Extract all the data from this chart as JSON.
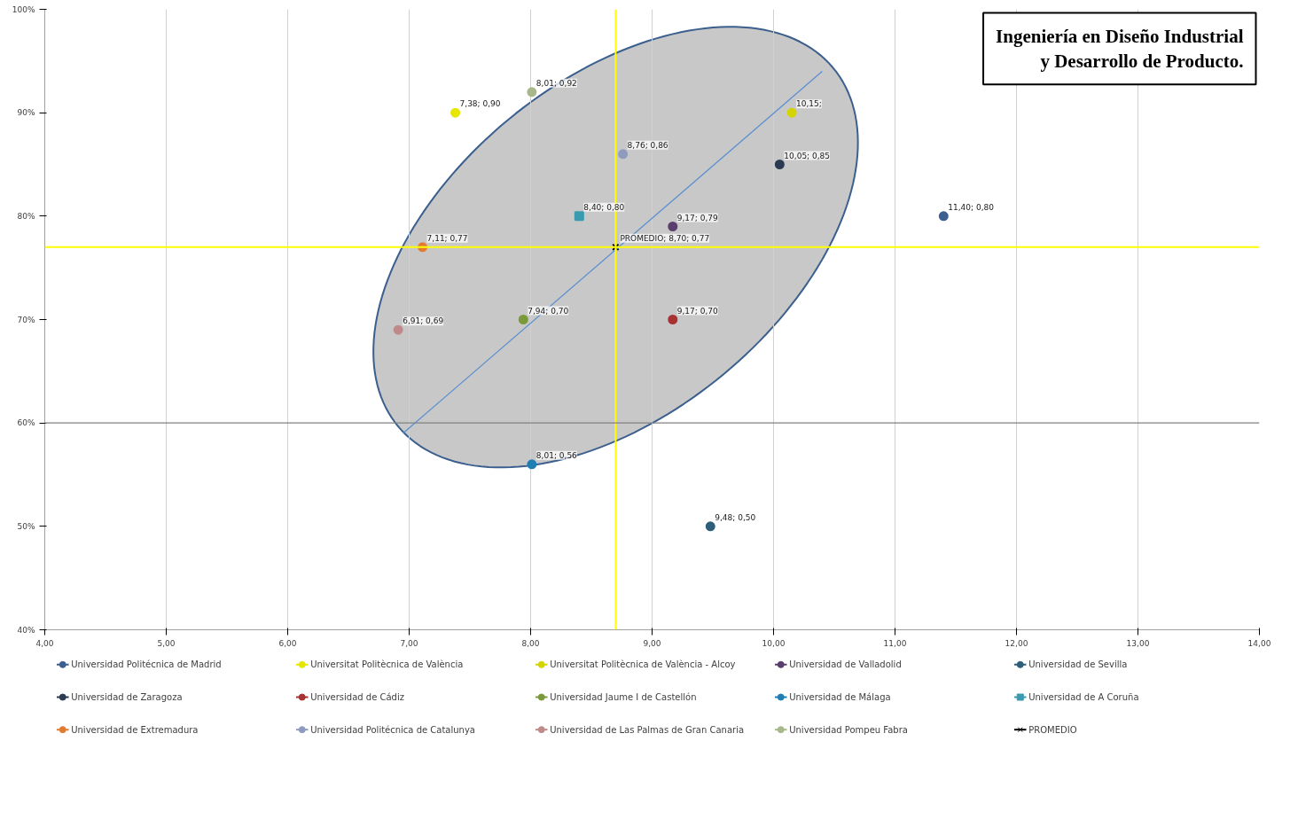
{
  "chart_data": {
    "type": "scatter",
    "title": "Ingeniería en Diseño Industrial y Desarrollo de Producto.",
    "xlim": [
      4,
      14
    ],
    "ylim": [
      0.4,
      1.0
    ],
    "xticks": [
      {
        "value": 4,
        "label": "4,00"
      },
      {
        "value": 5,
        "label": "5,00"
      },
      {
        "value": 6,
        "label": "6,00"
      },
      {
        "value": 7,
        "label": "7,00"
      },
      {
        "value": 8,
        "label": "8,00"
      },
      {
        "value": 9,
        "label": "9,00"
      },
      {
        "value": 10,
        "label": "10,00"
      },
      {
        "value": 11,
        "label": "11,00"
      },
      {
        "value": 12,
        "label": "12,00"
      },
      {
        "value": 13,
        "label": "13,00"
      },
      {
        "value": 14,
        "label": "14,00"
      }
    ],
    "yticks": [
      {
        "value": 0.4,
        "label": "40%"
      },
      {
        "value": 0.5,
        "label": "50%"
      },
      {
        "value": 0.6,
        "label": "60%"
      },
      {
        "value": 0.7,
        "label": "70%"
      },
      {
        "value": 0.8,
        "label": "80%"
      },
      {
        "value": 0.9,
        "label": "90%"
      },
      {
        "value": 1.0,
        "label": "100%"
      }
    ],
    "annotations": [
      {
        "text": "10,15;",
        "x": 10.15,
        "y": 0.9
      }
    ],
    "grid": "x",
    "legend": "bottom",
    "marker": "circle",
    "ref_lines": [
      {
        "axis": "x",
        "value": 8.7,
        "color": "#ffff00"
      },
      {
        "axis": "y",
        "value": 0.77,
        "color": "#ffff00"
      },
      {
        "axis": "y",
        "value": 0.6,
        "color": "#808080"
      }
    ],
    "series": [
      {
        "name": "Universidad Politécnica de Madrid",
        "color": "#3b5f8e",
        "x": [
          11.4
        ],
        "values": [
          0.8
        ],
        "value_labels": [
          "11,40; 0,80"
        ]
      },
      {
        "name": "Universitat Politècnica de València",
        "color": "#e6e600",
        "x": [
          7.38
        ],
        "values": [
          0.9
        ],
        "value_labels": [
          "7,38; 0,90"
        ]
      },
      {
        "name": "Universitat Politècnica de València - Alcoy",
        "color": "#d4d400",
        "x": [
          10.15
        ],
        "values": [
          0.9
        ],
        "value_labels": [
          null
        ]
      },
      {
        "name": "Universidad de Valladolid",
        "color": "#5a3e6e",
        "x": [
          9.17
        ],
        "values": [
          0.79
        ],
        "value_labels": [
          "9,17; 0,79"
        ]
      },
      {
        "name": "Universidad de Sevilla",
        "color": "#2e5f7a",
        "x": [
          9.48
        ],
        "values": [
          0.5
        ],
        "value_labels": [
          "9,48; 0,50"
        ]
      },
      {
        "name": "Universidad de Zaragoza",
        "color": "#2b3b52",
        "x": [
          10.05
        ],
        "values": [
          0.85
        ],
        "value_labels": [
          "10,05; 0,85"
        ]
      },
      {
        "name": "Universidad de Cádiz",
        "color": "#a83232",
        "x": [
          9.17
        ],
        "values": [
          0.7
        ],
        "value_labels": [
          "9,17; 0,70"
        ]
      },
      {
        "name": "Universidad Jaume I de Castellón",
        "color": "#7a9a3a",
        "x": [
          7.94
        ],
        "values": [
          0.7
        ],
        "value_labels": [
          "7,94; 0,70"
        ]
      },
      {
        "name": "Universidad de Málaga",
        "color": "#1f7fb4",
        "x": [
          8.01
        ],
        "values": [
          0.56
        ],
        "value_labels": [
          "8,01; 0,56"
        ]
      },
      {
        "name": "Universidad de A Coruña",
        "color": "#3a9ab0",
        "marker": "square",
        "x": [
          8.4
        ],
        "values": [
          0.8
        ],
        "value_labels": [
          "8,40; 0,80"
        ]
      },
      {
        "name": "Universidad de Extremadura",
        "color": "#e07b30",
        "x": [
          7.11
        ],
        "values": [
          0.77
        ],
        "value_labels": [
          "7,11; 0,77"
        ]
      },
      {
        "name": "Universidad Politécnica de Catalunya",
        "color": "#8e9bbf",
        "x": [
          8.76
        ],
        "values": [
          0.86
        ],
        "value_labels": [
          "8,76; 0,86"
        ]
      },
      {
        "name": "Universidad de Las Palmas de Gran Canaria",
        "color": "#c08a8a",
        "x": [
          6.91
        ],
        "values": [
          0.69
        ],
        "value_labels": [
          "6,91; 0,69"
        ]
      },
      {
        "name": "Universidad Pompeu Fabra",
        "color": "#a8b88a",
        "x": [
          8.01
        ],
        "values": [
          0.92
        ],
        "value_labels": [
          "8,01; 0,92"
        ]
      },
      {
        "name": "PROMEDIO",
        "color": "#000000",
        "marker": "cross",
        "x": [
          8.7
        ],
        "values": [
          0.77
        ],
        "value_labels": [
          "PROMEDIO; 8,70; 0,77"
        ]
      },
      {
        "type": "line",
        "marker": "none",
        "color": "#5b8fd0",
        "x": [
          6.95,
          10.4
        ],
        "values": [
          0.59,
          0.94
        ]
      }
    ]
  }
}
